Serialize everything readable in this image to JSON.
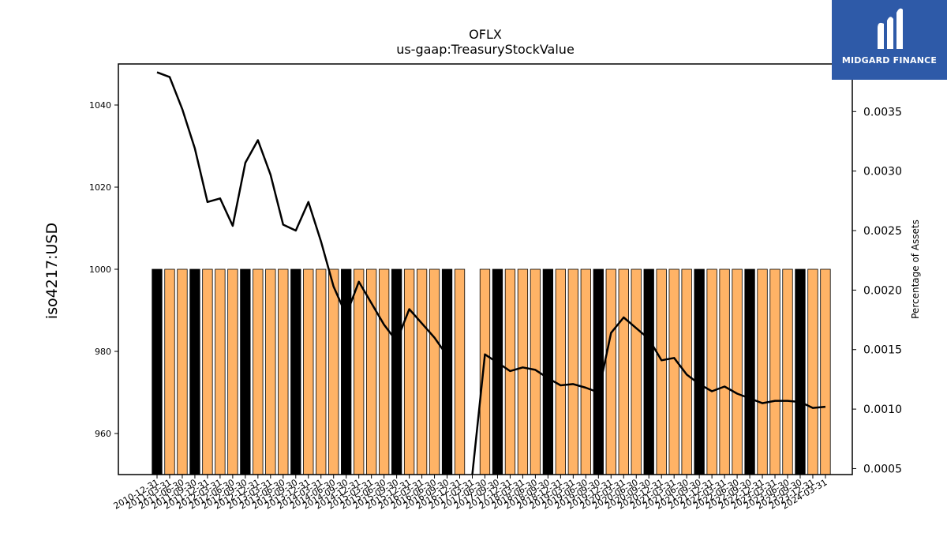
{
  "chart_data": {
    "type": "bar",
    "title": "OFLX",
    "subtitle": "us-gaap:TreasuryStockValue",
    "ylabel": "iso4217:USD",
    "ylabel_right": "Percentage of Assets",
    "ylim": [
      950,
      1050
    ],
    "ylim_right": [
      0.00045,
      0.0039
    ],
    "yticks": [
      960,
      980,
      1000,
      1020,
      1040
    ],
    "yticks_right": [
      0.0005,
      0.001,
      0.0015,
      0.002,
      0.0025,
      0.003,
      0.0035
    ],
    "colors": {
      "annual_bar": "#000000",
      "quarter_bar": "#ffb366",
      "line": "#000000"
    },
    "categories": [
      "2010-12-31",
      "2011-03-31",
      "2011-06-30",
      "2011-09-30",
      "2011-12-31",
      "2012-03-31",
      "2012-06-30",
      "2012-09-30",
      "2012-12-31",
      "2013-03-31",
      "2013-06-30",
      "2013-09-30",
      "2013-12-31",
      "2014-03-31",
      "2014-06-30",
      "2014-09-30",
      "2014-12-31",
      "2015-03-31",
      "2015-06-30",
      "2015-09-30",
      "2015-12-31",
      "2016-03-31",
      "2016-06-30",
      "2016-09-30",
      "2016-12-31",
      "2017-03-31",
      "2017-06-30",
      "2017-09-30",
      "2017-12-31",
      "2018-03-31",
      "2018-06-30",
      "2018-09-30",
      "2018-12-31",
      "2019-03-31",
      "2019-06-30",
      "2019-09-30",
      "2019-12-31",
      "2020-03-31",
      "2020-06-30",
      "2020-09-30",
      "2020-12-31",
      "2021-03-31",
      "2021-06-30",
      "2021-09-30",
      "2021-12-31",
      "2022-03-31",
      "2022-06-30",
      "2022-09-30",
      "2022-12-31",
      "2023-03-31",
      "2023-06-30",
      "2023-09-30",
      "2023-12-31",
      "2024-03-31"
    ],
    "series": [
      {
        "kind": "bar",
        "values": [
          1000,
          1000,
          1000,
          1000,
          1000,
          1000,
          1000,
          1000,
          1000,
          1000,
          1000,
          1000,
          1000,
          1000,
          1000,
          1000,
          1000,
          1000,
          1000,
          1000,
          1000,
          1000,
          1000,
          1000,
          1000,
          null,
          1000,
          1000,
          1000,
          1000,
          1000,
          1000,
          1000,
          1000,
          1000,
          1000,
          1000,
          1000,
          1000,
          1000,
          1000,
          1000,
          1000,
          1000,
          1000,
          1000,
          1000,
          1000,
          1000,
          1000,
          1000,
          1000,
          1000,
          1000
        ],
        "annual": [
          true,
          false,
          false,
          true,
          false,
          false,
          false,
          true,
          false,
          false,
          false,
          true,
          false,
          false,
          false,
          true,
          false,
          false,
          false,
          true,
          false,
          false,
          false,
          true,
          false,
          false,
          false,
          true,
          false,
          false,
          false,
          true,
          false,
          false,
          false,
          true,
          false,
          false,
          false,
          true,
          false,
          false,
          false,
          true,
          false,
          false,
          false,
          true,
          false,
          false,
          false,
          true,
          false,
          false
        ]
      },
      {
        "kind": "line",
        "axis": "right",
        "values": [
          0.00383,
          0.00379,
          0.00352,
          0.00319,
          0.00274,
          0.00277,
          0.00254,
          0.00307,
          0.00326,
          0.00297,
          0.00255,
          0.0025,
          0.00274,
          0.00241,
          0.00203,
          0.00179,
          0.00207,
          0.00189,
          0.00171,
          0.00157,
          0.00184,
          0.00172,
          0.0016,
          0.00145,
          null,
          0.00038,
          0.00146,
          0.00139,
          0.00132,
          0.00135,
          0.00133,
          0.00126,
          0.0012,
          0.00121,
          0.00118,
          0.00114,
          0.00164,
          0.00177,
          0.00168,
          0.00159,
          0.00141,
          0.00143,
          0.00129,
          0.00121,
          0.00115,
          0.00119,
          0.00113,
          0.00109,
          0.00105,
          0.00107,
          0.00107,
          0.00106,
          0.00101,
          0.00102
        ]
      }
    ]
  },
  "brand": {
    "name": "MIDGARD FINANCE"
  }
}
